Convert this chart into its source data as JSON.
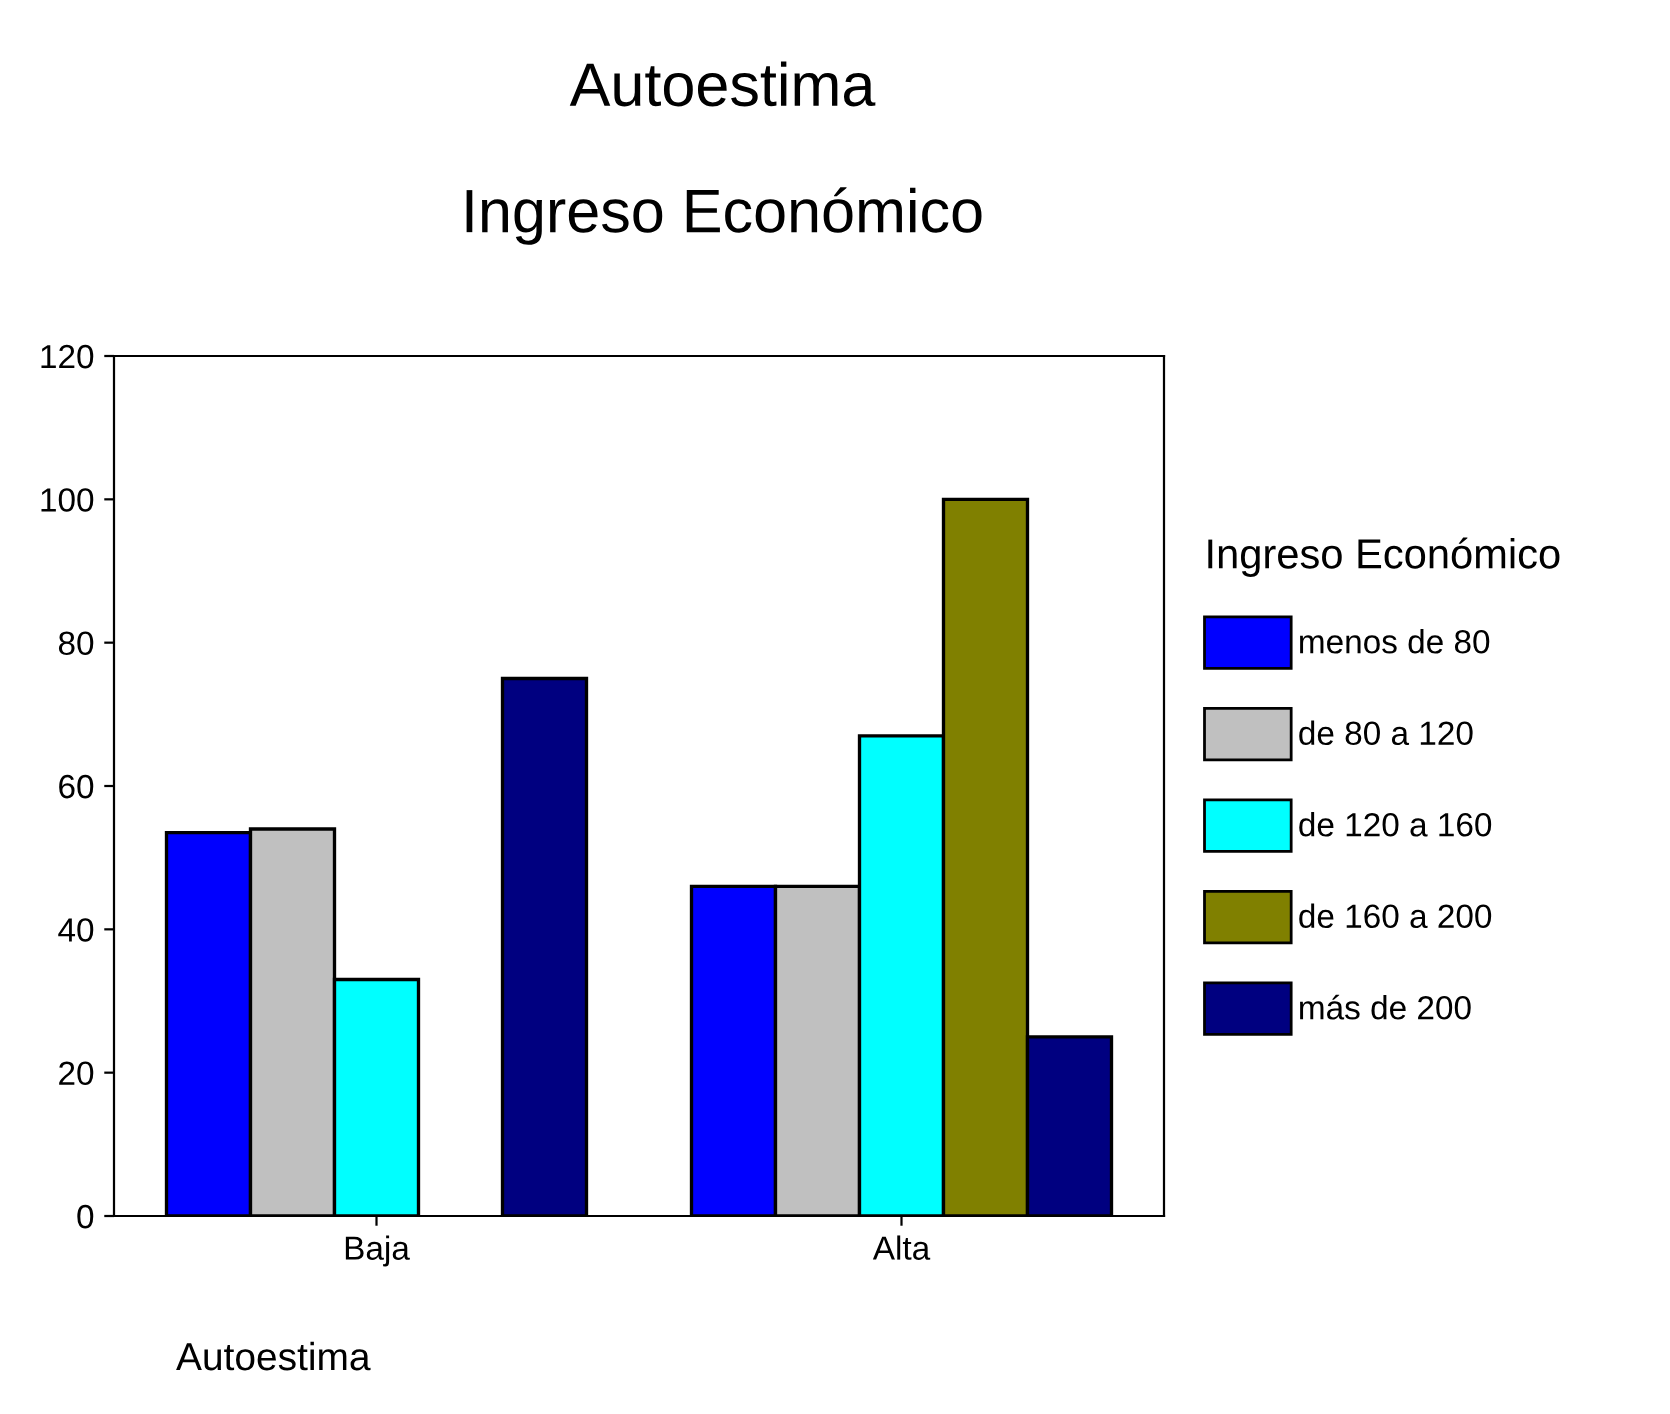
{
  "chart_data": {
    "type": "bar",
    "title": "Autoestima",
    "subtitle": "Ingreso Económico",
    "xlabel": "Autoestima",
    "legend_title": "Ingreso Económico",
    "categories": [
      "Baja",
      "Alta"
    ],
    "series": [
      {
        "name": "menos de 80",
        "color": "#0000ff",
        "values": [
          53.5,
          46
        ]
      },
      {
        "name": "de 80 a 120",
        "color": "#c0c0c0",
        "values": [
          54,
          46
        ]
      },
      {
        "name": "de 120 a 160",
        "color": "#00ffff",
        "values": [
          33,
          67
        ]
      },
      {
        "name": "de 160 a 200",
        "color": "#808000",
        "values": [
          0,
          100
        ]
      },
      {
        "name": "más de 200",
        "color": "#000080",
        "values": [
          75,
          25
        ]
      }
    ],
    "ylim": [
      0,
      120
    ],
    "yticks": [
      0,
      20,
      40,
      60,
      80,
      100,
      120
    ],
    "grid": false,
    "legend": "right"
  }
}
